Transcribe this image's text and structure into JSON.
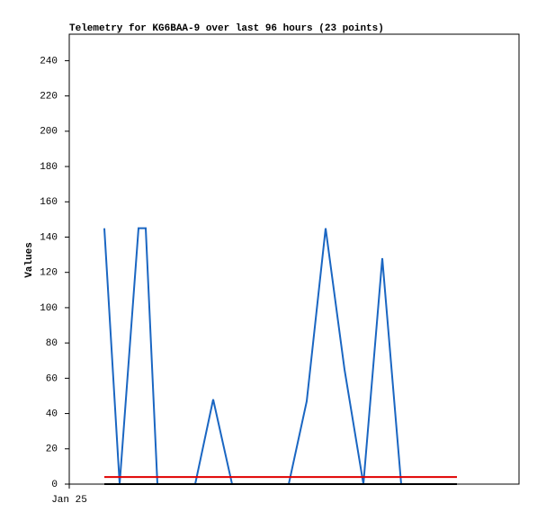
{
  "chart_data": {
    "type": "line",
    "title": "Telemetry for KG6BAA-9 over last 96 hours (23 points)",
    "y_label": "Values",
    "xlim": [
      0,
      100
    ],
    "xticks": [
      {
        "value": 0,
        "label": "Jan 25"
      }
    ],
    "ylim": [
      0,
      255
    ],
    "yticks": [
      0,
      20,
      40,
      60,
      80,
      100,
      120,
      140,
      160,
      180,
      200,
      220,
      240
    ],
    "series": [
      {
        "color": "#1a66c2",
        "x": [
          7.8,
          11.2,
          15.4,
          17,
          19.6,
          28,
          32,
          36.2,
          48.8,
          52.8,
          57,
          61.2,
          65.4,
          69.6,
          73.8,
          78,
          82.2,
          86.2
        ],
        "values": [
          145,
          0,
          145,
          145,
          0,
          0,
          48,
          0,
          0,
          47,
          145,
          65,
          0,
          128,
          0,
          0,
          0,
          0
        ]
      },
      {
        "color": "#e00000",
        "x": [
          7.8,
          86.2
        ],
        "values": [
          4,
          4
        ]
      },
      {
        "color": "#000000",
        "x": [
          7.8,
          86.2
        ],
        "values": [
          0,
          0
        ]
      }
    ]
  }
}
